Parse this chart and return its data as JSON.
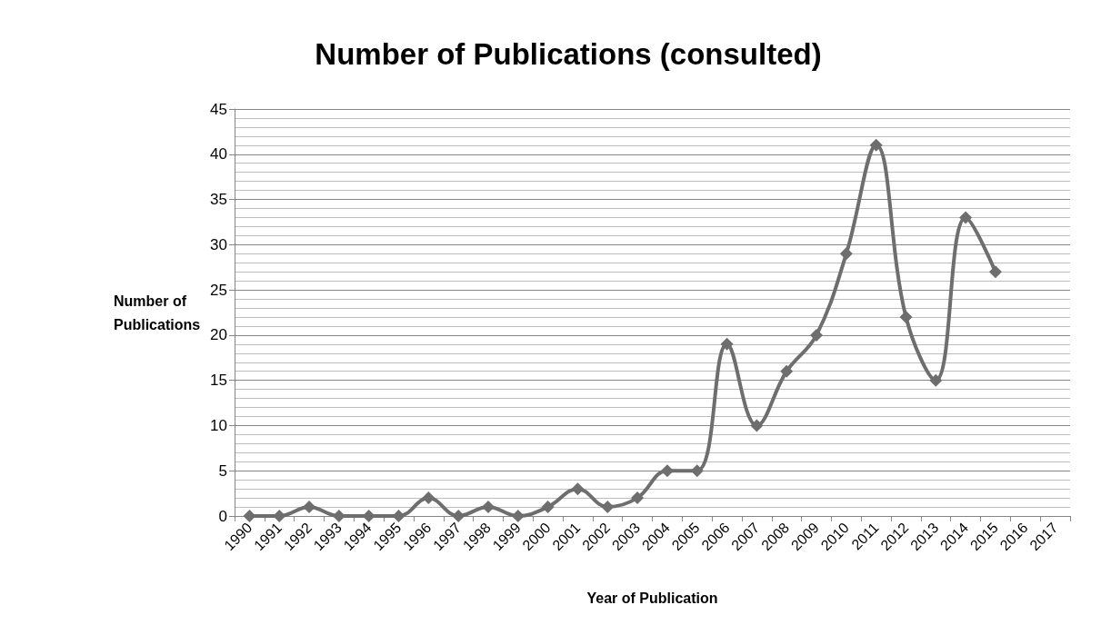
{
  "chart_data": {
    "type": "line",
    "title": "Number of Publications (consulted)",
    "xlabel": "Year of Publication",
    "ylabel": "Number of Publications",
    "categories": [
      "1990",
      "1991",
      "1992",
      "1993",
      "1994",
      "1995",
      "1996",
      "1997",
      "1998",
      "1999",
      "2000",
      "2001",
      "2002",
      "2003",
      "2004",
      "2005",
      "2006",
      "2007",
      "2008",
      "2009",
      "2010",
      "2011",
      "2012",
      "2013",
      "2014",
      "2015",
      "2016",
      "2017"
    ],
    "series": [
      {
        "color": "#6e6e6e",
        "values": [
          0,
          0,
          1,
          0,
          0,
          0,
          2,
          0,
          1,
          0,
          1,
          3,
          1,
          2,
          5,
          5,
          19,
          10,
          16,
          20,
          29,
          41,
          22,
          15,
          33,
          27,
          null,
          null
        ]
      }
    ],
    "ylim": [
      0,
      45
    ],
    "yticks": [
      0,
      5,
      10,
      15,
      20,
      25,
      30,
      35,
      40,
      45
    ],
    "grid": "y",
    "marker": "diamond",
    "line_style": "solid"
  }
}
